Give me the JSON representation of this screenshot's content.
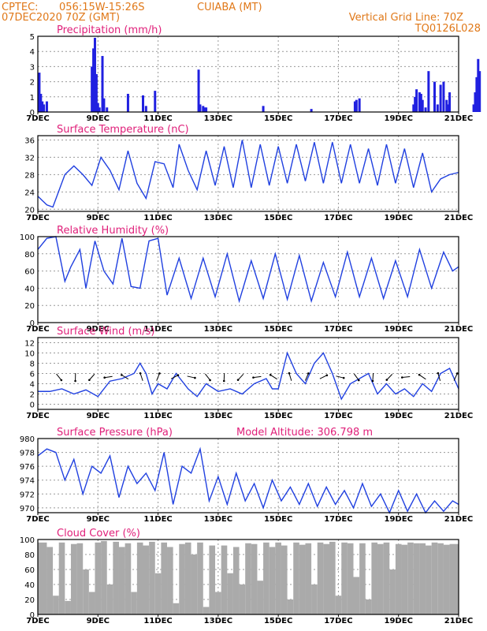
{
  "header": {
    "source": "CPTEC:",
    "coords": "056:15W-15:26S",
    "location": "CUIABA (MT)",
    "run": "07DEC2020 70Z (GMT)",
    "grid_line": "Vertical Grid Line: 70Z",
    "model_code": "TQ0126L028"
  },
  "colors": {
    "line": "#2040e0",
    "bar": "#2020e0",
    "cloud": "#aaaaaa",
    "grid": "#999999"
  },
  "x_labels": [
    "7DEC",
    "9DEC",
    "11DEC",
    "13DEC",
    "15DEC",
    "17DEC",
    "19DEC",
    "21DEC"
  ],
  "chart_data": [
    {
      "type": "bar",
      "title": "Precipitation (mm/h)",
      "ylim": [
        0,
        5
      ],
      "yticks": [
        0,
        1,
        2,
        3,
        4,
        5
      ],
      "x": [
        0.05,
        0.1,
        0.15,
        0.2,
        0.3,
        1.8,
        1.85,
        1.9,
        1.95,
        2.0,
        2.05,
        2.15,
        2.2,
        2.3,
        3.0,
        3.5,
        3.6,
        3.9,
        5.35,
        5.4,
        5.5,
        5.55,
        5.6,
        7.5,
        9.1,
        10.55,
        10.6,
        10.7,
        12.5,
        12.55,
        12.6,
        12.7,
        12.75,
        12.8,
        12.9,
        13.0,
        13.2,
        13.3,
        13.4,
        13.5,
        13.6,
        13.65,
        13.7,
        14.5,
        14.55,
        14.6,
        14.65,
        14.7
      ],
      "values": [
        2.6,
        1.2,
        0.7,
        0.5,
        0.7,
        3.0,
        4.2,
        4.9,
        2.5,
        0.6,
        0.3,
        3.7,
        0.9,
        0.3,
        1.2,
        1.1,
        0.4,
        1.4,
        2.8,
        0.5,
        0.4,
        0.3,
        0.3,
        0.4,
        0.2,
        0.7,
        0.8,
        0.9,
        0.5,
        1.0,
        1.5,
        1.3,
        1.2,
        0.8,
        0.3,
        2.7,
        2.0,
        0.5,
        1.8,
        2.0,
        0.8,
        0.5,
        1.3,
        0.5,
        1.3,
        2.3,
        3.5,
        2.7
      ]
    },
    {
      "type": "line",
      "title": "Surface Temperature (nC)",
      "ylim": [
        19.5,
        37
      ],
      "yticks": [
        20,
        24,
        28,
        32,
        36
      ],
      "x": [
        0,
        0.3,
        0.5,
        0.9,
        1.2,
        1.5,
        1.8,
        2.1,
        2.4,
        2.7,
        3.0,
        3.3,
        3.6,
        3.9,
        4.2,
        4.5,
        4.7,
        5.0,
        5.3,
        5.6,
        5.9,
        6.2,
        6.5,
        6.8,
        7.1,
        7.4,
        7.7,
        8.0,
        8.3,
        8.6,
        8.9,
        9.2,
        9.5,
        9.8,
        10.1,
        10.4,
        10.7,
        11.0,
        11.3,
        11.6,
        11.9,
        12.2,
        12.5,
        12.8,
        13.1,
        13.4,
        13.7,
        14.0
      ],
      "values": [
        23,
        21,
        20.5,
        28,
        30,
        28,
        25.5,
        32,
        29,
        24.5,
        33.5,
        26,
        22.5,
        31,
        30.5,
        25,
        35,
        29,
        24.5,
        33.5,
        25.5,
        34.5,
        25,
        36,
        25,
        35,
        25.5,
        34.5,
        26,
        35,
        26.5,
        35.5,
        26,
        35.5,
        26,
        35,
        26,
        34,
        25.5,
        35,
        26,
        34,
        25,
        33,
        24,
        27,
        28,
        28.5
      ]
    },
    {
      "type": "line",
      "title": "Relative Humidity (%)",
      "ylim": [
        0,
        100
      ],
      "yticks": [
        0,
        20,
        40,
        60,
        80,
        100
      ],
      "x": [
        0,
        0.3,
        0.6,
        0.9,
        1.1,
        1.4,
        1.6,
        1.9,
        2.2,
        2.5,
        2.8,
        3.1,
        3.4,
        3.7,
        4.0,
        4.3,
        4.7,
        5.1,
        5.5,
        5.9,
        6.3,
        6.7,
        7.1,
        7.5,
        7.9,
        8.3,
        8.7,
        9.1,
        9.5,
        9.9,
        10.3,
        10.7,
        11.1,
        11.5,
        11.9,
        12.3,
        12.7,
        13.1,
        13.5,
        13.8,
        14.0
      ],
      "values": [
        85,
        98,
        100,
        48,
        65,
        85,
        40,
        95,
        60,
        45,
        98,
        42,
        40,
        95,
        98,
        32,
        75,
        28,
        75,
        30,
        80,
        25,
        72,
        28,
        80,
        27,
        78,
        25,
        70,
        30,
        82,
        30,
        75,
        28,
        72,
        30,
        85,
        40,
        82,
        60,
        65
      ]
    },
    {
      "type": "line",
      "title": "Surface Wind (m/s)",
      "ylim": [
        -1,
        13
      ],
      "yticks": [
        0,
        2,
        4,
        6,
        8,
        10,
        12
      ],
      "x": [
        0,
        0.4,
        0.8,
        1.2,
        1.6,
        2.0,
        2.4,
        2.8,
        3.2,
        3.4,
        3.6,
        3.8,
        4.0,
        4.3,
        4.6,
        5.0,
        5.3,
        5.6,
        6.0,
        6.4,
        6.8,
        7.2,
        7.6,
        7.8,
        8.0,
        8.3,
        8.6,
        8.9,
        9.2,
        9.5,
        9.8,
        10.1,
        10.4,
        10.7,
        11.0,
        11.3,
        11.6,
        11.9,
        12.2,
        12.5,
        12.8,
        13.1,
        13.4,
        13.7,
        14.0
      ],
      "values": [
        2.5,
        2.5,
        3,
        2,
        2.8,
        1.5,
        4.5,
        5,
        6,
        8,
        6,
        2,
        4,
        3,
        6,
        3,
        1.5,
        4,
        2.5,
        3,
        2,
        4,
        5,
        3,
        3,
        10,
        6,
        4,
        8,
        10,
        6,
        1,
        4,
        5,
        6,
        2,
        4,
        2,
        3,
        1.5,
        4,
        2.5,
        6,
        7,
        3
      ]
    },
    {
      "type": "line",
      "title": "Surface Pressure (hPa)",
      "subtitle": "Model Altitude: 306.798 m",
      "ylim": [
        969.3,
        980
      ],
      "yticks": [
        970,
        972,
        974,
        976,
        978,
        980
      ],
      "x": [
        0,
        0.3,
        0.6,
        0.9,
        1.2,
        1.5,
        1.8,
        2.1,
        2.4,
        2.7,
        3.0,
        3.3,
        3.6,
        3.9,
        4.2,
        4.5,
        4.8,
        5.1,
        5.4,
        5.7,
        6.0,
        6.3,
        6.6,
        6.9,
        7.2,
        7.5,
        7.8,
        8.1,
        8.4,
        8.7,
        9.0,
        9.3,
        9.6,
        9.9,
        10.2,
        10.5,
        10.8,
        11.1,
        11.4,
        11.7,
        12.0,
        12.3,
        12.6,
        12.9,
        13.2,
        13.5,
        13.8,
        14.0
      ],
      "values": [
        977.5,
        978.5,
        978,
        974,
        977,
        972,
        976,
        975,
        977.5,
        971.5,
        976,
        973.5,
        975,
        972.5,
        978,
        970.5,
        976,
        975,
        978.5,
        971,
        974.5,
        970.5,
        975,
        971,
        973.5,
        970,
        974,
        971,
        973,
        970.5,
        973.5,
        970.2,
        973,
        970.5,
        972.5,
        970,
        973.5,
        970.2,
        972,
        969.3,
        972.5,
        969.5,
        972,
        969.3,
        971,
        969.5,
        971,
        970.5
      ]
    },
    {
      "type": "area",
      "title": "Cloud Cover (%)",
      "ylim": [
        0,
        100
      ],
      "yticks": [
        0,
        20,
        40,
        60,
        80,
        100
      ],
      "x": [
        0,
        0.3,
        0.5,
        0.7,
        0.9,
        1.1,
        1.3,
        1.5,
        1.7,
        1.9,
        2.1,
        2.3,
        2.5,
        2.7,
        2.9,
        3.1,
        3.3,
        3.5,
        3.7,
        3.9,
        4.1,
        4.3,
        4.5,
        4.7,
        4.9,
        5.1,
        5.3,
        5.5,
        5.7,
        5.9,
        6.1,
        6.3,
        6.5,
        6.7,
        6.9,
        7.1,
        7.3,
        7.5,
        7.7,
        7.9,
        8.1,
        8.3,
        8.5,
        8.7,
        8.9,
        9.1,
        9.3,
        9.5,
        9.7,
        9.9,
        10.1,
        10.3,
        10.5,
        10.7,
        10.9,
        11.1,
        11.3,
        11.5,
        11.7,
        11.9,
        12.1,
        12.3,
        12.5,
        12.7,
        12.9,
        13.1,
        13.3,
        13.5,
        13.7,
        14.0
      ],
      "values": [
        96,
        90,
        25,
        96,
        18,
        94,
        95,
        60,
        30,
        96,
        98,
        40,
        97,
        90,
        95,
        30,
        96,
        92,
        97,
        55,
        96,
        90,
        15,
        94,
        96,
        80,
        96,
        10,
        92,
        30,
        92,
        55,
        90,
        40,
        95,
        94,
        45,
        96,
        90,
        96,
        92,
        20,
        96,
        93,
        95,
        40,
        96,
        94,
        97,
        25,
        96,
        95,
        50,
        95,
        20,
        96,
        94,
        96,
        60,
        94,
        93,
        96,
        95,
        95,
        92,
        96,
        95,
        93,
        94,
        96
      ]
    }
  ]
}
